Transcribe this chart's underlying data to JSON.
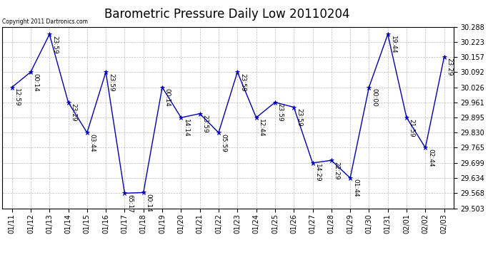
{
  "title": "Barometric Pressure Daily Low 20110204",
  "copyright": "Copyright 2011 Dartronics.com",
  "x_labels": [
    "01/11",
    "01/12",
    "01/13",
    "01/14",
    "01/15",
    "01/16",
    "01/17",
    "01/18",
    "01/19",
    "01/20",
    "01/21",
    "01/22",
    "01/23",
    "01/24",
    "01/25",
    "01/26",
    "01/27",
    "01/28",
    "01/29",
    "01/30",
    "01/31",
    "02/01",
    "02/02",
    "02/03"
  ],
  "y_values": [
    30.026,
    30.092,
    30.255,
    29.961,
    29.83,
    30.092,
    29.568,
    29.571,
    30.026,
    29.895,
    29.912,
    29.83,
    30.092,
    29.895,
    29.961,
    29.94,
    29.699,
    29.71,
    29.634,
    30.026,
    30.255,
    29.895,
    29.765,
    30.157
  ],
  "time_labels": [
    "12:59",
    "00:14",
    "23:59",
    "23:29",
    "03:44",
    "23:59",
    "65:17",
    "00:14",
    "00:14",
    "14:14",
    "23:59",
    "05:59",
    "23:59",
    "12:44",
    "23:59",
    "23:59",
    "14:29",
    "22:29",
    "01:44",
    "00:00",
    "19:44",
    "21:59",
    "02:44",
    "23:29"
  ],
  "ylim_min": 29.503,
  "ylim_max": 30.288,
  "yticks": [
    29.503,
    29.568,
    29.634,
    29.699,
    29.765,
    29.83,
    29.895,
    29.961,
    30.026,
    30.092,
    30.157,
    30.223,
    30.288
  ],
  "line_color": "#0000BB",
  "marker_color": "#0000BB",
  "bg_color": "#ffffff",
  "grid_color": "#bbbbbb",
  "title_fontsize": 12,
  "label_fontsize": 6.5,
  "tick_fontsize": 7
}
